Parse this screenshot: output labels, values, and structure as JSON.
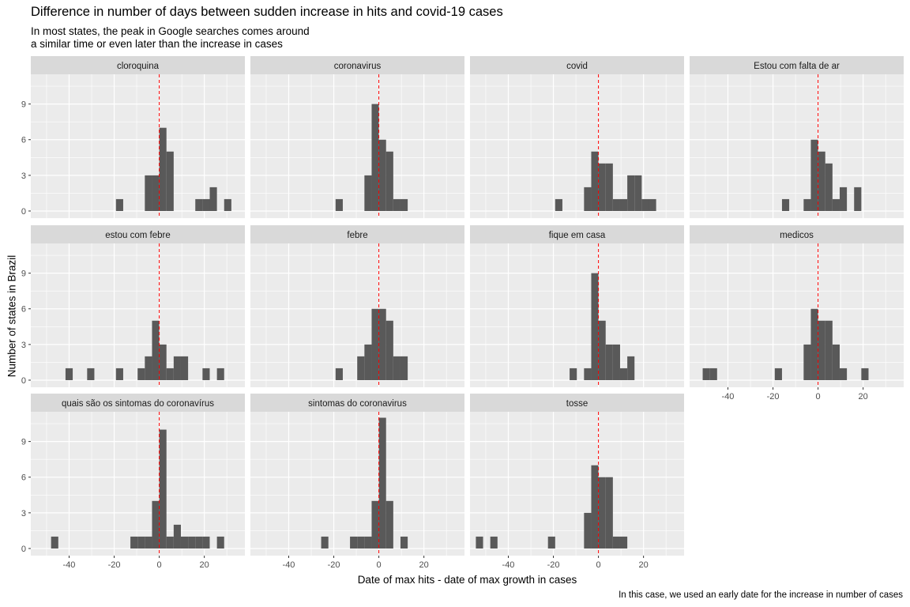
{
  "chart_data": {
    "type": "bar",
    "title": "Difference in number of days between sudden increase in hits and covid-19 cases",
    "subtitle_lines": [
      "In most states, the peak in Google searches comes around",
      "a similar time or even later than the increase in cases"
    ],
    "caption": "In this case, we used an early date for the increase in number of cases",
    "xlabel": "Date of max hits - date of max growth in cases",
    "ylabel": "Number of states in Brazil",
    "xlim": [
      -57,
      38
    ],
    "ylim": [
      -0.6,
      11.5
    ],
    "x_ticks": [
      -40,
      -20,
      0,
      20
    ],
    "y_ticks": [
      0,
      3,
      6,
      9
    ],
    "bin_width": 3.2,
    "reference_line": {
      "x": 0,
      "color": "#ff0000",
      "style": "dashed"
    },
    "bar_color": "#595959",
    "panel_background": "#ebebeb",
    "strip_background": "#d9d9d9",
    "grid": true,
    "facets": [
      {
        "label": "cloroquina",
        "bins": [
          [
            -17.6,
            1
          ],
          [
            -4.8,
            3
          ],
          [
            -1.6,
            3
          ],
          [
            1.6,
            7
          ],
          [
            4.8,
            5
          ],
          [
            8.0,
            0
          ],
          [
            11.2,
            0
          ],
          [
            14.4,
            0
          ],
          [
            17.6,
            1
          ],
          [
            20.8,
            1
          ],
          [
            24.0,
            2
          ],
          [
            30.4,
            1
          ]
        ]
      },
      {
        "label": "coronavirus",
        "bins": [
          [
            -17.6,
            1
          ],
          [
            -4.8,
            3
          ],
          [
            -1.6,
            9
          ],
          [
            1.6,
            6
          ],
          [
            4.8,
            5
          ],
          [
            8.0,
            1
          ],
          [
            11.2,
            1
          ]
        ]
      },
      {
        "label": "covid",
        "bins": [
          [
            -17.6,
            1
          ],
          [
            -4.8,
            2
          ],
          [
            -1.6,
            5
          ],
          [
            1.6,
            4
          ],
          [
            4.8,
            4
          ],
          [
            8.0,
            1
          ],
          [
            11.2,
            1
          ],
          [
            14.4,
            3
          ],
          [
            17.6,
            3
          ],
          [
            20.8,
            1
          ],
          [
            24.0,
            1
          ]
        ]
      },
      {
        "label": "Estou com falta de ar",
        "bins": [
          [
            -14.4,
            1
          ],
          [
            -4.8,
            1
          ],
          [
            -1.6,
            6
          ],
          [
            1.6,
            5
          ],
          [
            4.8,
            4
          ],
          [
            8.0,
            1
          ],
          [
            11.2,
            2
          ],
          [
            17.6,
            2
          ]
        ]
      },
      {
        "label": "estou com febre",
        "bins": [
          [
            -40.0,
            1
          ],
          [
            -30.4,
            1
          ],
          [
            -17.6,
            1
          ],
          [
            -8.0,
            1
          ],
          [
            -4.8,
            2
          ],
          [
            -1.6,
            5
          ],
          [
            1.6,
            3
          ],
          [
            4.8,
            1
          ],
          [
            8.0,
            2
          ],
          [
            11.2,
            2
          ],
          [
            20.8,
            1
          ],
          [
            27.2,
            1
          ]
        ]
      },
      {
        "label": "febre",
        "bins": [
          [
            -17.6,
            1
          ],
          [
            -8.0,
            2
          ],
          [
            -4.8,
            3
          ],
          [
            -1.6,
            6
          ],
          [
            1.6,
            6
          ],
          [
            4.8,
            5
          ],
          [
            8.0,
            2
          ],
          [
            11.2,
            2
          ]
        ]
      },
      {
        "label": "fique em casa",
        "bins": [
          [
            -11.2,
            1
          ],
          [
            -4.8,
            1
          ],
          [
            -1.6,
            9
          ],
          [
            1.6,
            5
          ],
          [
            4.8,
            3
          ],
          [
            8.0,
            3
          ],
          [
            11.2,
            1
          ],
          [
            14.4,
            2
          ]
        ]
      },
      {
        "label": "medicos",
        "bins": [
          [
            -49.6,
            1
          ],
          [
            -46.4,
            1
          ],
          [
            -17.6,
            1
          ],
          [
            -4.8,
            3
          ],
          [
            -1.6,
            6
          ],
          [
            1.6,
            5
          ],
          [
            4.8,
            5
          ],
          [
            8.0,
            3
          ],
          [
            11.2,
            1
          ],
          [
            20.8,
            1
          ]
        ]
      },
      {
        "label": "quais são os sintomas do coronavírus",
        "bins": [
          [
            -46.4,
            1
          ],
          [
            -11.2,
            1
          ],
          [
            -8.0,
            1
          ],
          [
            -4.8,
            1
          ],
          [
            -1.6,
            4
          ],
          [
            1.6,
            10
          ],
          [
            4.8,
            1
          ],
          [
            8.0,
            2
          ],
          [
            11.2,
            1
          ],
          [
            14.4,
            1
          ],
          [
            17.6,
            1
          ],
          [
            20.8,
            1
          ],
          [
            27.2,
            1
          ]
        ]
      },
      {
        "label": "sintomas do coronavirus",
        "bins": [
          [
            -24.0,
            1
          ],
          [
            -11.2,
            1
          ],
          [
            -8.0,
            1
          ],
          [
            -4.8,
            1
          ],
          [
            -1.6,
            4
          ],
          [
            1.6,
            11
          ],
          [
            4.8,
            4
          ],
          [
            11.2,
            1
          ]
        ]
      },
      {
        "label": "tosse",
        "bins": [
          [
            -52.8,
            1
          ],
          [
            -46.4,
            1
          ],
          [
            -20.8,
            1
          ],
          [
            -4.8,
            3
          ],
          [
            -1.6,
            7
          ],
          [
            1.6,
            6
          ],
          [
            4.8,
            6
          ],
          [
            8.0,
            1
          ],
          [
            11.2,
            1
          ]
        ]
      }
    ]
  }
}
